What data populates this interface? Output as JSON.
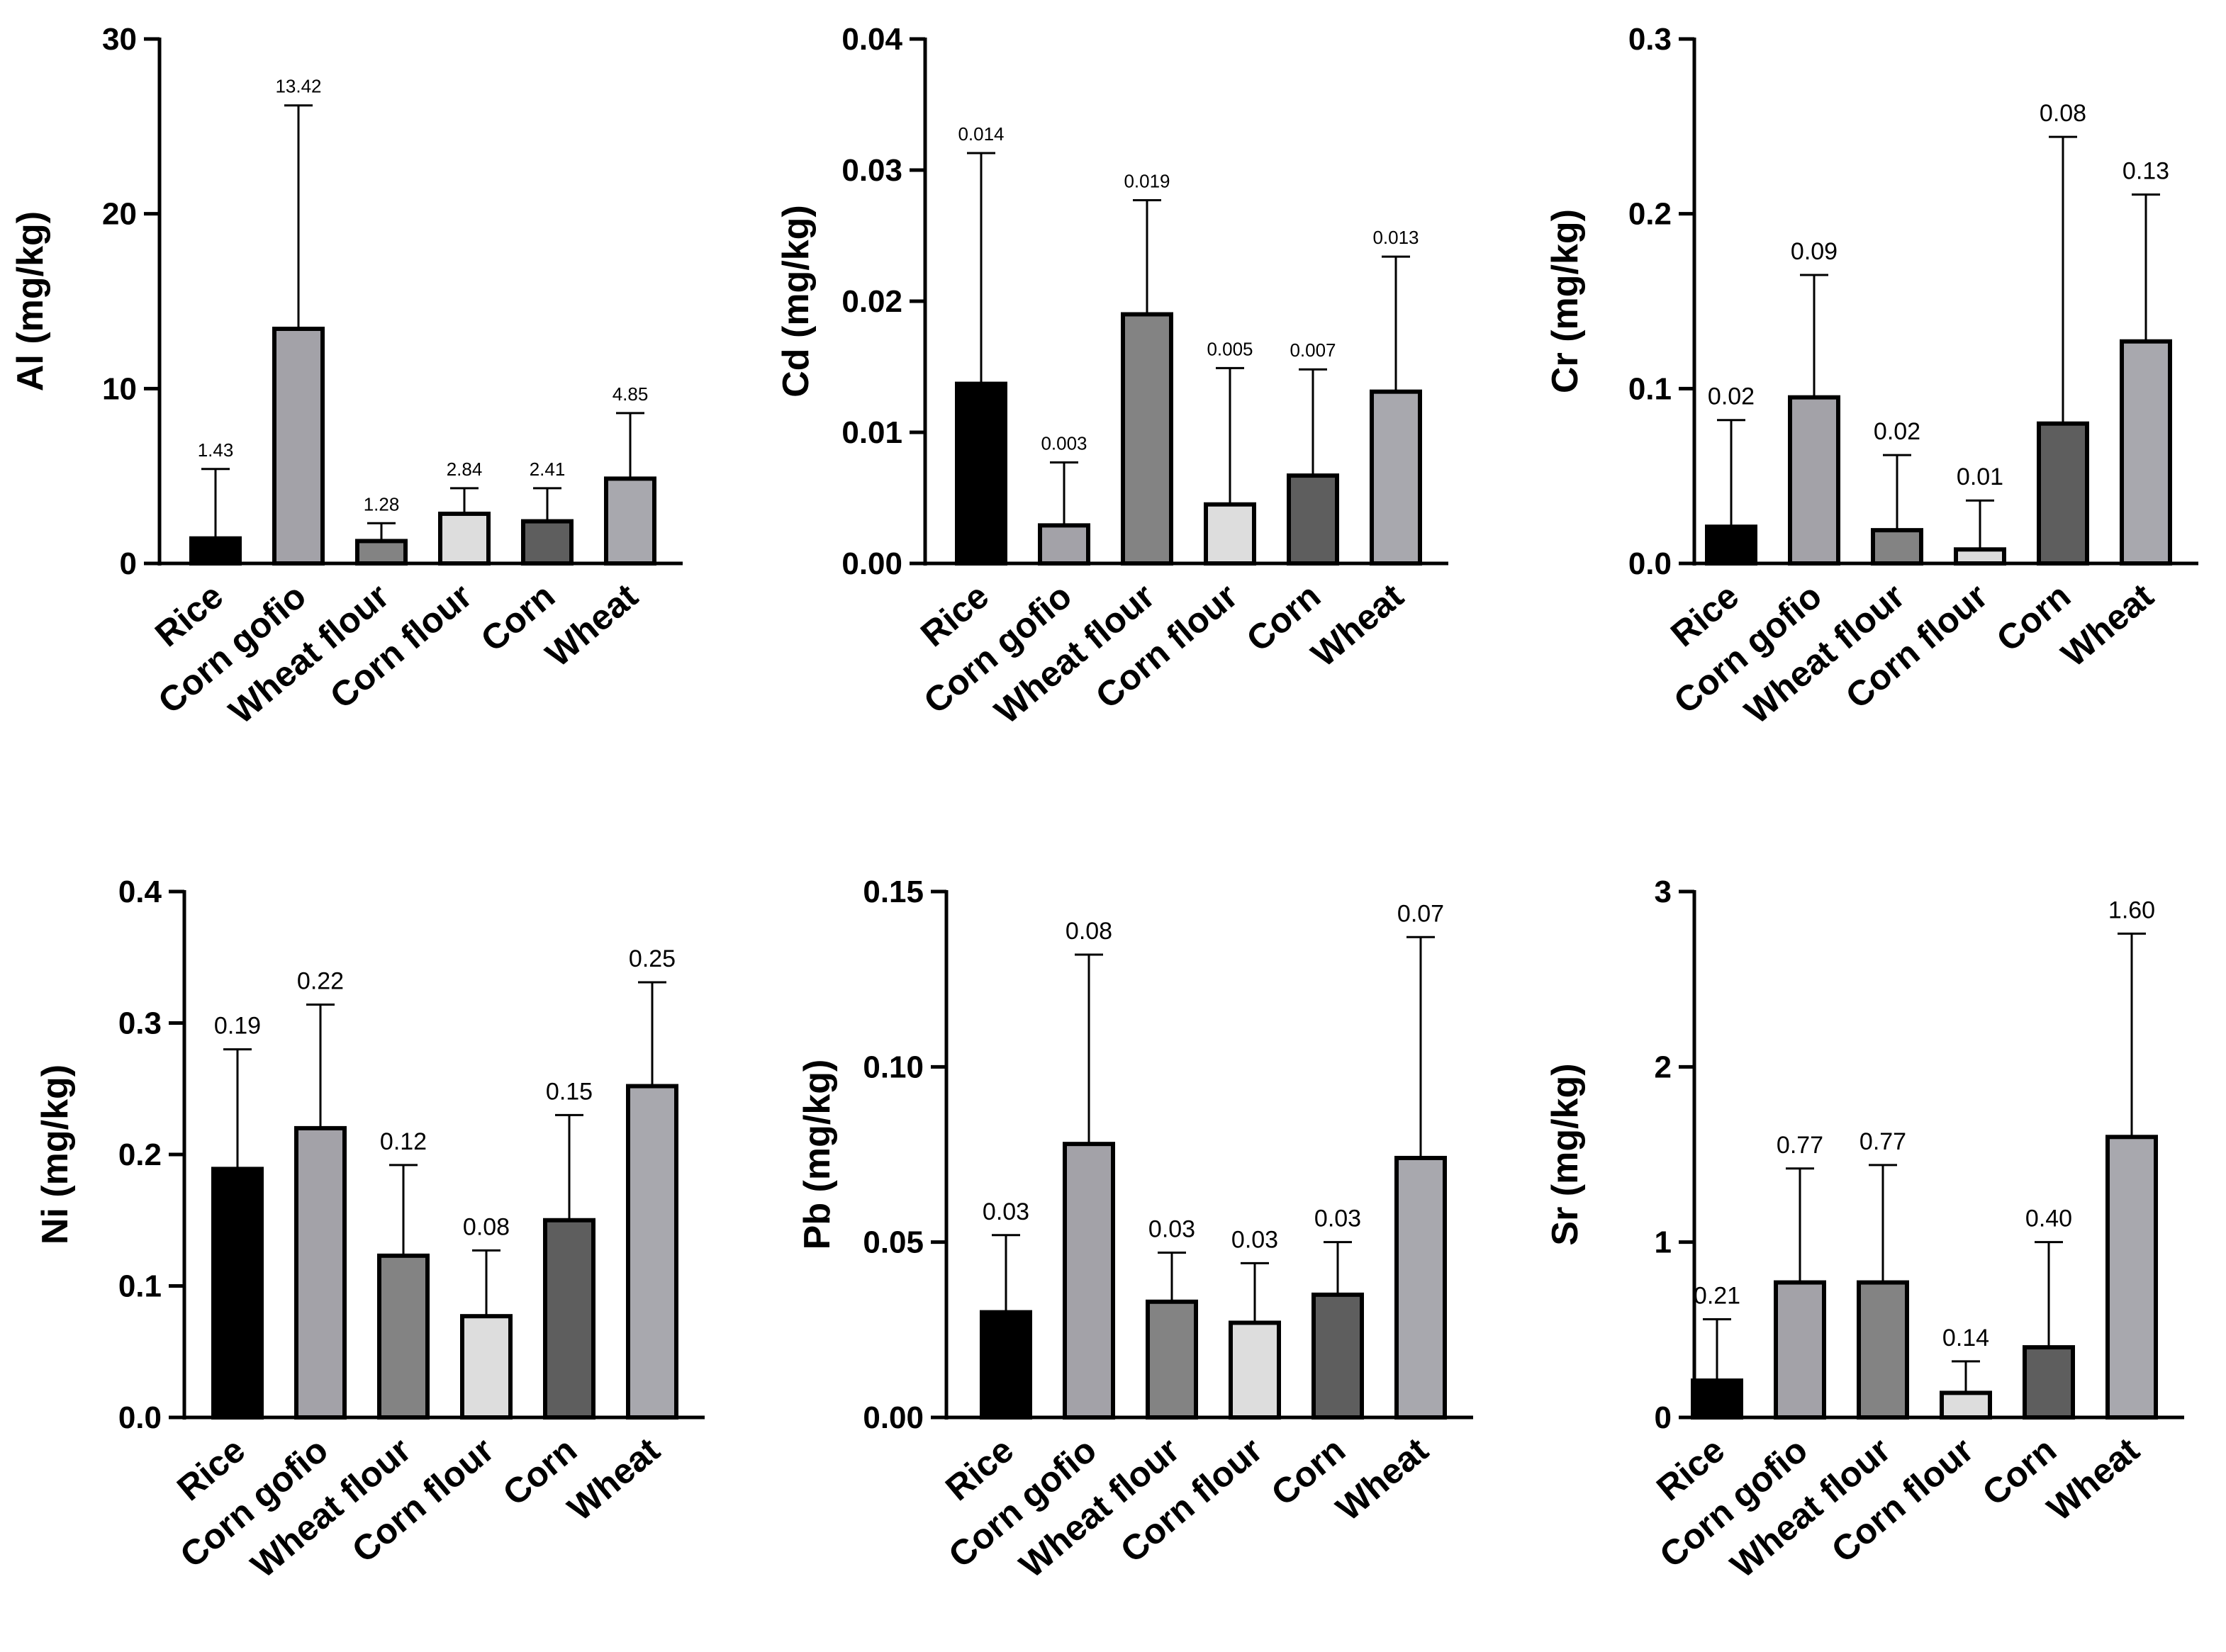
{
  "chart_data": [
    {
      "type": "bar",
      "title": "",
      "ylabel": "Al (mg/kg)",
      "categories": [
        "Rice",
        "Corn gofio",
        "Wheat flour",
        "Corn flour",
        "Corn",
        "Wheat"
      ],
      "values": [
        1.43,
        13.42,
        1.28,
        2.84,
        2.41,
        4.85
      ],
      "value_labels": [
        "1.43",
        "13.42",
        "1.28",
        "2.84",
        "2.41",
        "4.85"
      ],
      "error_upper": [
        5.4,
        26.2,
        2.3,
        4.3,
        4.3,
        8.6
      ],
      "ylim": [
        0,
        30
      ],
      "yticks": [
        0,
        10,
        20,
        30
      ],
      "ytick_labels": [
        "0",
        "10",
        "20",
        "30"
      ],
      "bar_colors": [
        "#000000",
        "#a3a2a8",
        "#838383",
        "#dddddd",
        "#5e5e5e",
        "#a8a8ae"
      ]
    },
    {
      "type": "bar",
      "title": "",
      "ylabel": "Cd (mg/kg)",
      "categories": [
        "Rice",
        "Corn gofio",
        "Wheat flour",
        "Corn flour",
        "Corn",
        "Wheat"
      ],
      "values": [
        0.0137,
        0.0029,
        0.019,
        0.0045,
        0.0067,
        0.0131
      ],
      "value_labels": [
        "0.014",
        "0.003",
        "0.019",
        "0.005",
        "0.007",
        "0.013"
      ],
      "error_upper": [
        0.0313,
        0.0077,
        0.0277,
        0.0149,
        0.0148,
        0.0234
      ],
      "ylim": [
        0,
        0.04
      ],
      "yticks": [
        0,
        0.01,
        0.02,
        0.03,
        0.04
      ],
      "ytick_labels": [
        "0.00",
        "0.01",
        "0.02",
        "0.03",
        "0.04"
      ],
      "bar_colors": [
        "#000000",
        "#a3a2a8",
        "#838383",
        "#dddddd",
        "#5e5e5e",
        "#a8a8ae"
      ]
    },
    {
      "type": "bar",
      "title": "",
      "ylabel": "Cr (mg/kg)",
      "categories": [
        "Rice",
        "Corn gofio",
        "Wheat flour",
        "Corn flour",
        "Corn",
        "Wheat"
      ],
      "values": [
        0.021,
        0.095,
        0.019,
        0.008,
        0.08,
        0.127
      ],
      "value_labels": [
        "0.02",
        "0.09",
        "0.02",
        "0.01",
        "0.08",
        "0.13"
      ],
      "error_upper": [
        0.082,
        0.165,
        0.062,
        0.036,
        0.244,
        0.211
      ],
      "ylim": [
        0,
        0.3
      ],
      "yticks": [
        0,
        0.1,
        0.2,
        0.3
      ],
      "ytick_labels": [
        "0.0",
        "0.1",
        "0.2",
        "0.3"
      ],
      "bar_colors": [
        "#000000",
        "#a3a2a8",
        "#838383",
        "#dddddd",
        "#5e5e5e",
        "#a8a8ae"
      ]
    },
    {
      "type": "bar",
      "title": "",
      "ylabel": "Ni (mg/kg)",
      "categories": [
        "Rice",
        "Corn gofio",
        "Wheat flour",
        "Corn flour",
        "Corn",
        "Wheat"
      ],
      "values": [
        0.189,
        0.22,
        0.123,
        0.077,
        0.15,
        0.252
      ],
      "value_labels": [
        "0.19",
        "0.22",
        "0.12",
        "0.08",
        "0.15",
        "0.25"
      ],
      "error_upper": [
        0.28,
        0.314,
        0.192,
        0.127,
        0.23,
        0.331
      ],
      "ylim": [
        0,
        0.4
      ],
      "yticks": [
        0,
        0.1,
        0.2,
        0.3,
        0.4
      ],
      "ytick_labels": [
        "0.0",
        "0.1",
        "0.2",
        "0.3",
        "0.4"
      ],
      "bar_colors": [
        "#000000",
        "#a3a2a8",
        "#838383",
        "#dddddd",
        "#5e5e5e",
        "#a8a8ae"
      ]
    },
    {
      "type": "bar",
      "title": "",
      "ylabel": "Pb (mg/kg)",
      "categories": [
        "Rice",
        "Corn gofio",
        "Wheat flour",
        "Corn flour",
        "Corn",
        "Wheat"
      ],
      "values": [
        0.03,
        0.078,
        0.033,
        0.027,
        0.035,
        0.074
      ],
      "value_labels": [
        "0.03",
        "0.08",
        "0.03",
        "0.03",
        "0.03",
        "0.07"
      ],
      "error_upper": [
        0.052,
        0.132,
        0.047,
        0.044,
        0.05,
        0.137
      ],
      "ylim": [
        0,
        0.15
      ],
      "yticks": [
        0,
        0.05,
        0.1,
        0.15
      ],
      "ytick_labels": [
        "0.00",
        "0.05",
        "0.10",
        "0.15"
      ],
      "bar_colors": [
        "#000000",
        "#a3a2a8",
        "#838383",
        "#dddddd",
        "#5e5e5e",
        "#a8a8ae"
      ]
    },
    {
      "type": "bar",
      "title": "",
      "ylabel": "Sr (mg/kg)",
      "categories": [
        "Rice",
        "Corn gofio",
        "Wheat flour",
        "Corn flour",
        "Corn",
        "Wheat"
      ],
      "values": [
        0.21,
        0.77,
        0.77,
        0.14,
        0.4,
        1.6
      ],
      "value_labels": [
        "0.21",
        "0.77",
        "0.77",
        "0.14",
        "0.40",
        "1.60"
      ],
      "error_upper": [
        0.56,
        1.42,
        1.44,
        0.32,
        1.0,
        2.76
      ],
      "ylim": [
        0,
        3
      ],
      "yticks": [
        0,
        1,
        2,
        3
      ],
      "ytick_labels": [
        "0",
        "1",
        "2",
        "3"
      ],
      "bar_colors": [
        "#000000",
        "#a3a2a8",
        "#838383",
        "#dddddd",
        "#5e5e5e",
        "#a8a8ae"
      ]
    }
  ]
}
